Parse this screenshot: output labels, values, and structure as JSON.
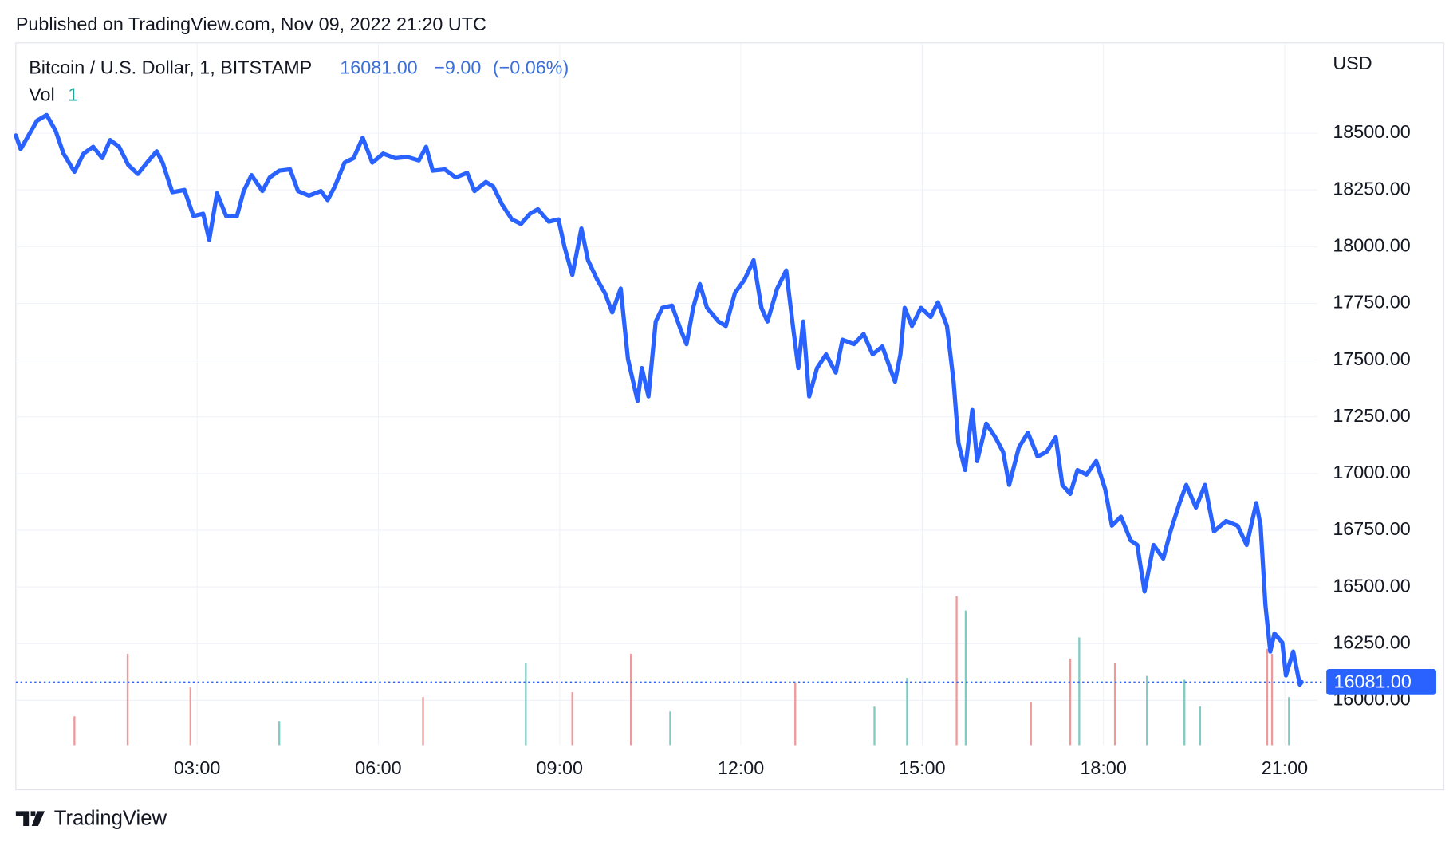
{
  "publish_note": "Published on TradingView.com, Nov 09, 2022 21:20 UTC",
  "watermark": "TradingView",
  "chart_data": {
    "type": "line",
    "title": "Bitcoin / U.S. Dollar, 1, BITSTAMP",
    "last": {
      "value": 16081,
      "label": "16081.00"
    },
    "change": {
      "value": -9,
      "label": "−9.00"
    },
    "change_percent": {
      "value": -0.06,
      "label": "(−0.06%)"
    },
    "currency": "USD",
    "line_color": "#2962ff",
    "grid": true,
    "xlim": [
      0,
      21.55
    ],
    "ylim": [
      15803,
      18898
    ],
    "xticks": [
      {
        "value": 3,
        "label": "03:00"
      },
      {
        "value": 6,
        "label": "06:00"
      },
      {
        "value": 9,
        "label": "09:00"
      },
      {
        "value": 12,
        "label": "12:00"
      },
      {
        "value": 15,
        "label": "15:00"
      },
      {
        "value": 18,
        "label": "18:00"
      },
      {
        "value": 21,
        "label": "21:00"
      }
    ],
    "yticks": [
      {
        "value": 16000,
        "label": "16000.00"
      },
      {
        "value": 16250,
        "label": "16250.00"
      },
      {
        "value": 16500,
        "label": "16500.00"
      },
      {
        "value": 16750,
        "label": "16750.00"
      },
      {
        "value": 17000,
        "label": "17000.00"
      },
      {
        "value": 17250,
        "label": "17250.00"
      },
      {
        "value": 17500,
        "label": "17500.00"
      },
      {
        "value": 17750,
        "label": "17750.00"
      },
      {
        "value": 18000,
        "label": "18000.00"
      },
      {
        "value": 18250,
        "label": "18250.00"
      },
      {
        "value": 18500,
        "label": "18500.00"
      }
    ],
    "series": [
      {
        "color": "#2962ff",
        "x": [
          0,
          0.08,
          0.35,
          0.51,
          0.66,
          0.79,
          0.97,
          1.12,
          1.28,
          1.43,
          1.56,
          1.71,
          1.86,
          2.02,
          2.17,
          2.33,
          2.43,
          2.59,
          2.79,
          2.94,
          3.1,
          3.2,
          3.33,
          3.48,
          3.66,
          3.77,
          3.9,
          4.08,
          4.2,
          4.36,
          4.54,
          4.67,
          4.85,
          5.05,
          5.16,
          5.28,
          5.44,
          5.59,
          5.74,
          5.9,
          6.08,
          6.28,
          6.48,
          6.67,
          6.79,
          6.9,
          7.1,
          7.28,
          7.47,
          7.59,
          7.78,
          7.9,
          8.05,
          8.21,
          8.36,
          8.51,
          8.64,
          8.82,
          8.98,
          9.08,
          9.21,
          9.36,
          9.47,
          9.62,
          9.75,
          9.87,
          10.01,
          10.13,
          10.29,
          10.36,
          10.47,
          10.59,
          10.7,
          10.86,
          11.01,
          11.1,
          11.21,
          11.32,
          11.44,
          11.63,
          11.75,
          11.9,
          12.06,
          12.21,
          12.34,
          12.44,
          12.6,
          12.75,
          12.86,
          12.95,
          13.03,
          13.13,
          13.26,
          13.41,
          13.57,
          13.68,
          13.87,
          14.03,
          14.18,
          14.34,
          14.44,
          14.55,
          14.64,
          14.71,
          14.83,
          14.98,
          15.14,
          15.26,
          15.41,
          15.52,
          15.6,
          15.71,
          15.83,
          15.91,
          16.06,
          16.21,
          16.34,
          16.44,
          16.6,
          16.75,
          16.91,
          17.06,
          17.21,
          17.32,
          17.45,
          17.57,
          17.72,
          17.88,
          18.03,
          18.14,
          18.29,
          18.45,
          18.56,
          18.68,
          18.83,
          18.99,
          19.11,
          19.26,
          19.37,
          19.53,
          19.68,
          19.83,
          20.03,
          20.22,
          20.37,
          20.53,
          20.6,
          20.68,
          20.76,
          20.83,
          20.96,
          21.02,
          21.14,
          21.25,
          21.28
        ],
        "values": [
          18490,
          18430,
          18555,
          18580,
          18510,
          18410,
          18330,
          18410,
          18440,
          18390,
          18470,
          18440,
          18360,
          18320,
          18370,
          18420,
          18370,
          18240,
          18250,
          18135,
          18145,
          18030,
          18235,
          18135,
          18135,
          18245,
          18315,
          18245,
          18305,
          18335,
          18340,
          18245,
          18225,
          18245,
          18205,
          18265,
          18370,
          18390,
          18480,
          18370,
          18410,
          18390,
          18395,
          18380,
          18440,
          18335,
          18340,
          18305,
          18325,
          18245,
          18285,
          18265,
          18185,
          18120,
          18100,
          18145,
          18165,
          18110,
          18120,
          18000,
          17875,
          18080,
          17940,
          17855,
          17795,
          17710,
          17815,
          17505,
          17320,
          17465,
          17340,
          17670,
          17730,
          17740,
          17630,
          17570,
          17730,
          17835,
          17730,
          17670,
          17650,
          17795,
          17855,
          17940,
          17730,
          17670,
          17815,
          17895,
          17650,
          17465,
          17670,
          17340,
          17465,
          17525,
          17445,
          17590,
          17570,
          17615,
          17525,
          17560,
          17485,
          17405,
          17525,
          17730,
          17650,
          17730,
          17690,
          17755,
          17650,
          17405,
          17135,
          17015,
          17280,
          17055,
          17220,
          17160,
          17095,
          16950,
          17115,
          17180,
          17075,
          17095,
          17160,
          16950,
          16910,
          17015,
          16995,
          17055,
          16930,
          16770,
          16810,
          16705,
          16685,
          16480,
          16685,
          16625,
          16745,
          16870,
          16950,
          16850,
          16950,
          16745,
          16790,
          16770,
          16685,
          16870,
          16770,
          16420,
          16215,
          16295,
          16255,
          16110,
          16215,
          16070,
          16081
        ]
      }
    ],
    "volume": {
      "name": "Vol",
      "last": 1,
      "x": [
        0.97,
        1.85,
        2.89,
        4.36,
        6.74,
        8.44,
        9.21,
        10.18,
        10.83,
        12.9,
        14.21,
        14.75,
        15.57,
        15.72,
        16.8,
        17.45,
        17.6,
        18.19,
        18.72,
        19.34,
        19.6,
        20.71,
        20.79,
        21.07
      ],
      "values": [
        30,
        95,
        60,
        25,
        50,
        85,
        55,
        95,
        35,
        65,
        40,
        70,
        155,
        140,
        45,
        90,
        112,
        85,
        72,
        68,
        40,
        100,
        95,
        50
      ],
      "colors": [
        "#ef9a9a",
        "#ef9a9a",
        "#ef9a9a",
        "#80cbc4",
        "#ef9a9a",
        "#80cbc4",
        "#ef9a9a",
        "#ef9a9a",
        "#80cbc4",
        "#ef9a9a",
        "#80cbc4",
        "#80cbc4",
        "#ef9a9a",
        "#80cbc4",
        "#ef9a9a",
        "#ef9a9a",
        "#80cbc4",
        "#ef9a9a",
        "#80cbc4",
        "#80cbc4",
        "#80cbc4",
        "#ef9a9a",
        "#ef9a9a",
        "#80cbc4"
      ]
    }
  }
}
